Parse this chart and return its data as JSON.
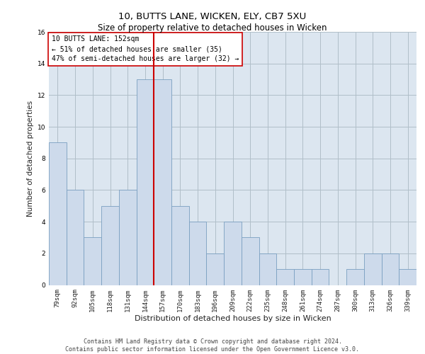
{
  "title1": "10, BUTTS LANE, WICKEN, ELY, CB7 5XU",
  "title2": "Size of property relative to detached houses in Wicken",
  "xlabel": "Distribution of detached houses by size in Wicken",
  "ylabel": "Number of detached properties",
  "categories": [
    "79sqm",
    "92sqm",
    "105sqm",
    "118sqm",
    "131sqm",
    "144sqm",
    "157sqm",
    "170sqm",
    "183sqm",
    "196sqm",
    "209sqm",
    "222sqm",
    "235sqm",
    "248sqm",
    "261sqm",
    "274sqm",
    "287sqm",
    "300sqm",
    "313sqm",
    "326sqm",
    "339sqm"
  ],
  "values": [
    9,
    6,
    3,
    5,
    6,
    13,
    13,
    5,
    4,
    2,
    4,
    3,
    2,
    1,
    1,
    1,
    0,
    1,
    2,
    2,
    1
  ],
  "bar_color": "#cddaeb",
  "bar_edge_color": "#7a9fc0",
  "vline_color": "#cc0000",
  "annotation_box_text": "10 BUTTS LANE: 152sqm\n← 51% of detached houses are smaller (35)\n47% of semi-detached houses are larger (32) →",
  "annotation_box_color": "#cc0000",
  "annotation_box_fill": "#ffffff",
  "ylim": [
    0,
    16
  ],
  "yticks": [
    0,
    2,
    4,
    6,
    8,
    10,
    12,
    14,
    16
  ],
  "grid_color": "#b0bec8",
  "background_color": "#dce6f0",
  "footer_text": "Contains HM Land Registry data © Crown copyright and database right 2024.\nContains public sector information licensed under the Open Government Licence v3.0.",
  "title1_fontsize": 9.5,
  "title2_fontsize": 8.5,
  "xlabel_fontsize": 8,
  "ylabel_fontsize": 7.5,
  "tick_fontsize": 6.5,
  "annotation_fontsize": 7,
  "footer_fontsize": 6
}
